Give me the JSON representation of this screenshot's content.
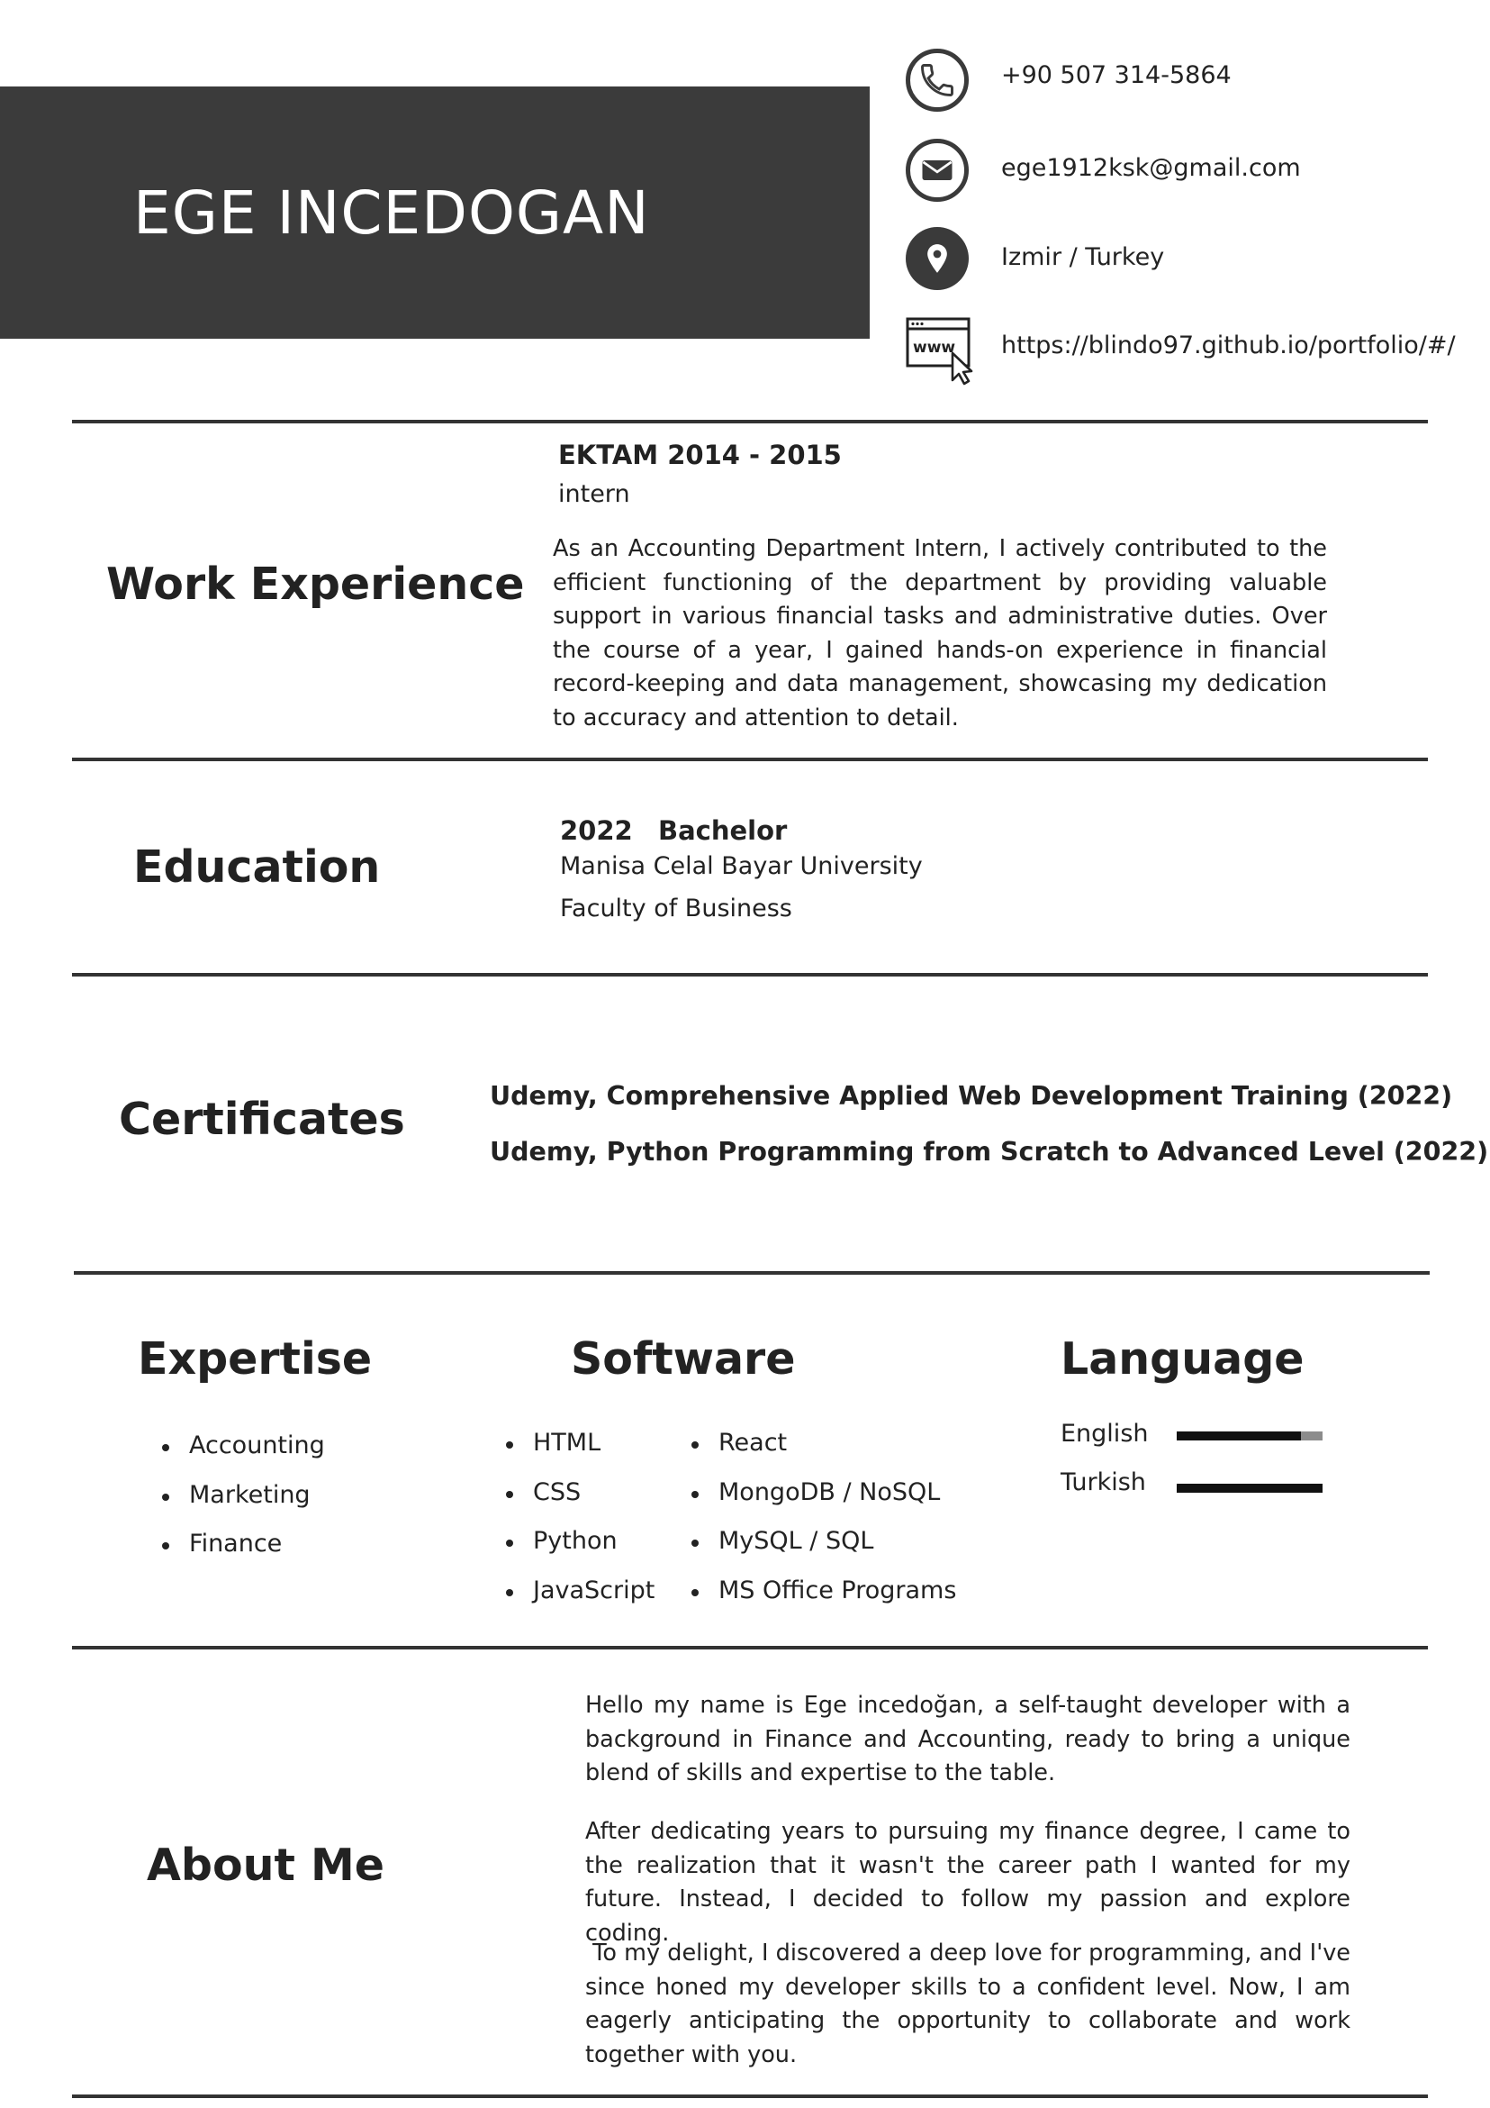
{
  "header": {
    "name": "EGE INCEDOGAN"
  },
  "contact": {
    "phone": "+90 507 314-5864",
    "email": "ege1912ksk@gmail.com",
    "location": "Izmir / Turkey",
    "website": "https://blindo97.github.io/portfolio/#/",
    "www_badge": "www",
    "icons": [
      "phone-icon",
      "mail-icon",
      "location-pin-icon",
      "www-cursor-icon"
    ]
  },
  "work": {
    "title": "Work Experience",
    "company_years": "EKTAM 2014 - 2015",
    "role": "intern",
    "description": "As an Accounting Department Intern, I actively contributed to the efficient functioning of the department by providing valuable support in various financial tasks and administrative duties. Over the course of a year, I gained hands-on experience in financial record-keeping and data management, showcasing my dedication to accuracy and attention to detail."
  },
  "education": {
    "title": "Education",
    "year": "2022",
    "degree": "Bachelor",
    "school": "Manisa Celal Bayar University",
    "faculty": "Faculty of Business"
  },
  "certificates": {
    "title": "Certificates",
    "items": [
      "Udemy, Comprehensive Applied Web Development Training (2022)",
      "Udemy, Python Programming from Scratch to Advanced Level (2022)"
    ]
  },
  "expertise": {
    "title": "Expertise",
    "items": [
      "Accounting",
      "Marketing",
      "Finance"
    ]
  },
  "software": {
    "title": "Software",
    "col1": [
      "HTML",
      "CSS",
      "Python",
      "JavaScript"
    ],
    "col2": [
      "React",
      "MongoDB / NoSQL",
      "MySQL / SQL",
      "MS Office Programs"
    ]
  },
  "language": {
    "title": "Language",
    "items": [
      {
        "name": "English",
        "level": 0.85
      },
      {
        "name": "Turkish",
        "level": 1.0
      }
    ]
  },
  "about": {
    "title": "About Me",
    "paragraphs": [
      "Hello my name is Ege incedoğan, a self-taught developer with a background in Finance and Accounting, ready to bring a unique blend of skills and expertise to the table.",
      "After dedicating years to pursuing my finance degree, I came to the realization that it wasn't the career path I wanted for my future. Instead, I decided to follow my passion and explore coding.",
      " To my delight, I discovered a deep love for programming, and I've since honed my developer skills to a confident level. Now, I am eagerly anticipating the opportunity to collaborate and work together with you."
    ]
  },
  "colors": {
    "header_bg": "#3b3b3b",
    "text": "#222222",
    "divider": "#333333",
    "bar_fill": "#111111",
    "bar_track": "#8c8c8c"
  }
}
